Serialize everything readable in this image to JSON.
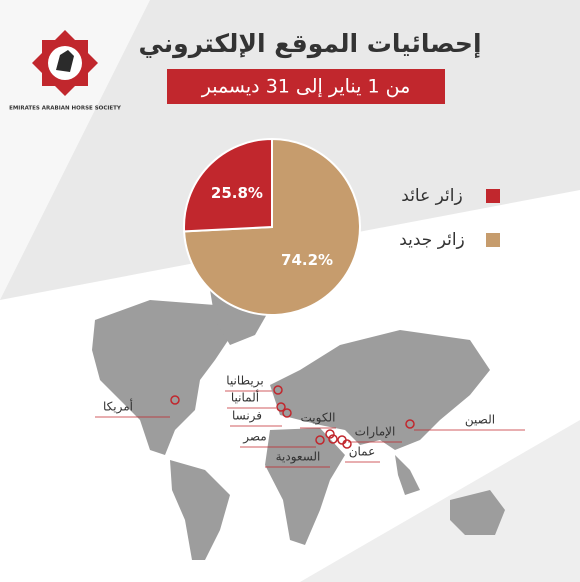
{
  "logo_text": "EMIRATES ARABIAN HORSE SOCIETY",
  "chart_data": {
    "type": "pie",
    "title": "إحصائيات الموقع الإلكتروني",
    "subtitle": "من 1 يناير إلى 31 ديسمبر",
    "categories": [
      "زائر عائد",
      "زائر جديد"
    ],
    "values": [
      25.8,
      74.2
    ],
    "value_labels": [
      "25.8%",
      "74.2%"
    ],
    "colors": [
      "#c1272d",
      "#c69c6d"
    ],
    "legend": "right"
  },
  "map": {
    "countries": [
      "أمريكا",
      "بريطانيا",
      "ألمانيا",
      "فرنسا",
      "الكويت",
      "مصر",
      "الإمارات",
      "السعودية",
      "عمان",
      "الصين"
    ]
  }
}
